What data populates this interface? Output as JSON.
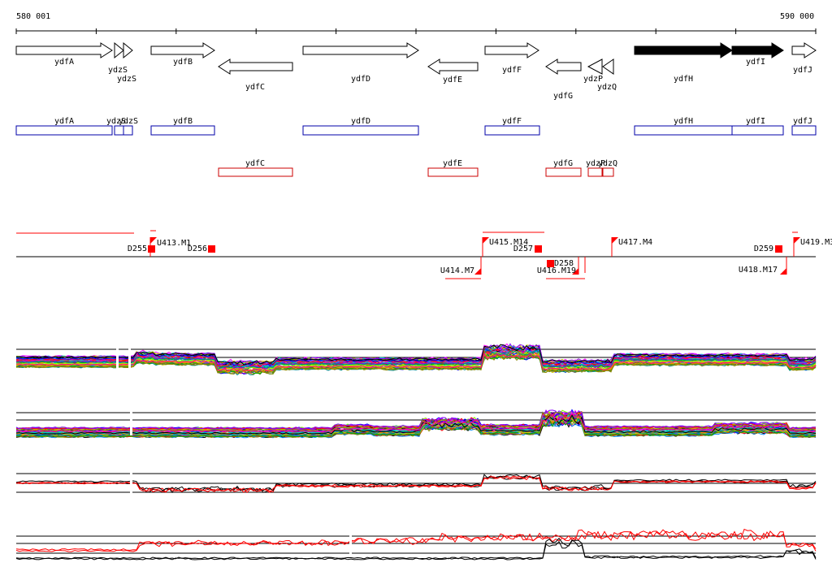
{
  "scale": {
    "start_label": "580 001",
    "end_label": "590 000"
  },
  "genes": [
    {
      "name": "ydfA",
      "dir": "fwd",
      "fill": "white"
    },
    {
      "name": "ydzS",
      "dir": "fwd",
      "fill": "white"
    },
    {
      "name": "ydzS",
      "dir": "fwd",
      "fill": "white"
    },
    {
      "name": "ydfB",
      "dir": "fwd",
      "fill": "white"
    },
    {
      "name": "ydfC",
      "dir": "rev",
      "fill": "white"
    },
    {
      "name": "ydfD",
      "dir": "fwd",
      "fill": "white"
    },
    {
      "name": "ydfE",
      "dir": "rev",
      "fill": "white"
    },
    {
      "name": "ydfF",
      "dir": "fwd",
      "fill": "white"
    },
    {
      "name": "ydfG",
      "dir": "rev",
      "fill": "white"
    },
    {
      "name": "ydzP",
      "dir": "rev",
      "fill": "white"
    },
    {
      "name": "ydzQ",
      "dir": "rev",
      "fill": "white"
    },
    {
      "name": "ydfH",
      "dir": "fwd",
      "fill": "black"
    },
    {
      "name": "ydfI",
      "dir": "fwd",
      "fill": "black"
    },
    {
      "name": "ydfJ",
      "dir": "fwd",
      "fill": "white"
    }
  ],
  "annot_fwd": [
    "ydfA",
    "ydzS",
    "ydzS",
    "ydfB",
    "ydfD",
    "ydfF",
    "ydfH",
    "ydfI",
    "ydfJ"
  ],
  "annot_rev": [
    "ydfC",
    "ydfE",
    "ydfG",
    "ydzP",
    "ydzQ"
  ],
  "features": [
    "U413.M1",
    "D255",
    "D256",
    "U414.M7",
    "U415.M14",
    "D257",
    "D258",
    "U416.M19",
    "U417.M4",
    "D259",
    "U418.M17",
    "U419.M3"
  ],
  "colors": {
    "fwd_annot": "#0000aa",
    "rev_annot": "#cc0000",
    "feature": "#ff0000",
    "black": "#000000"
  }
}
